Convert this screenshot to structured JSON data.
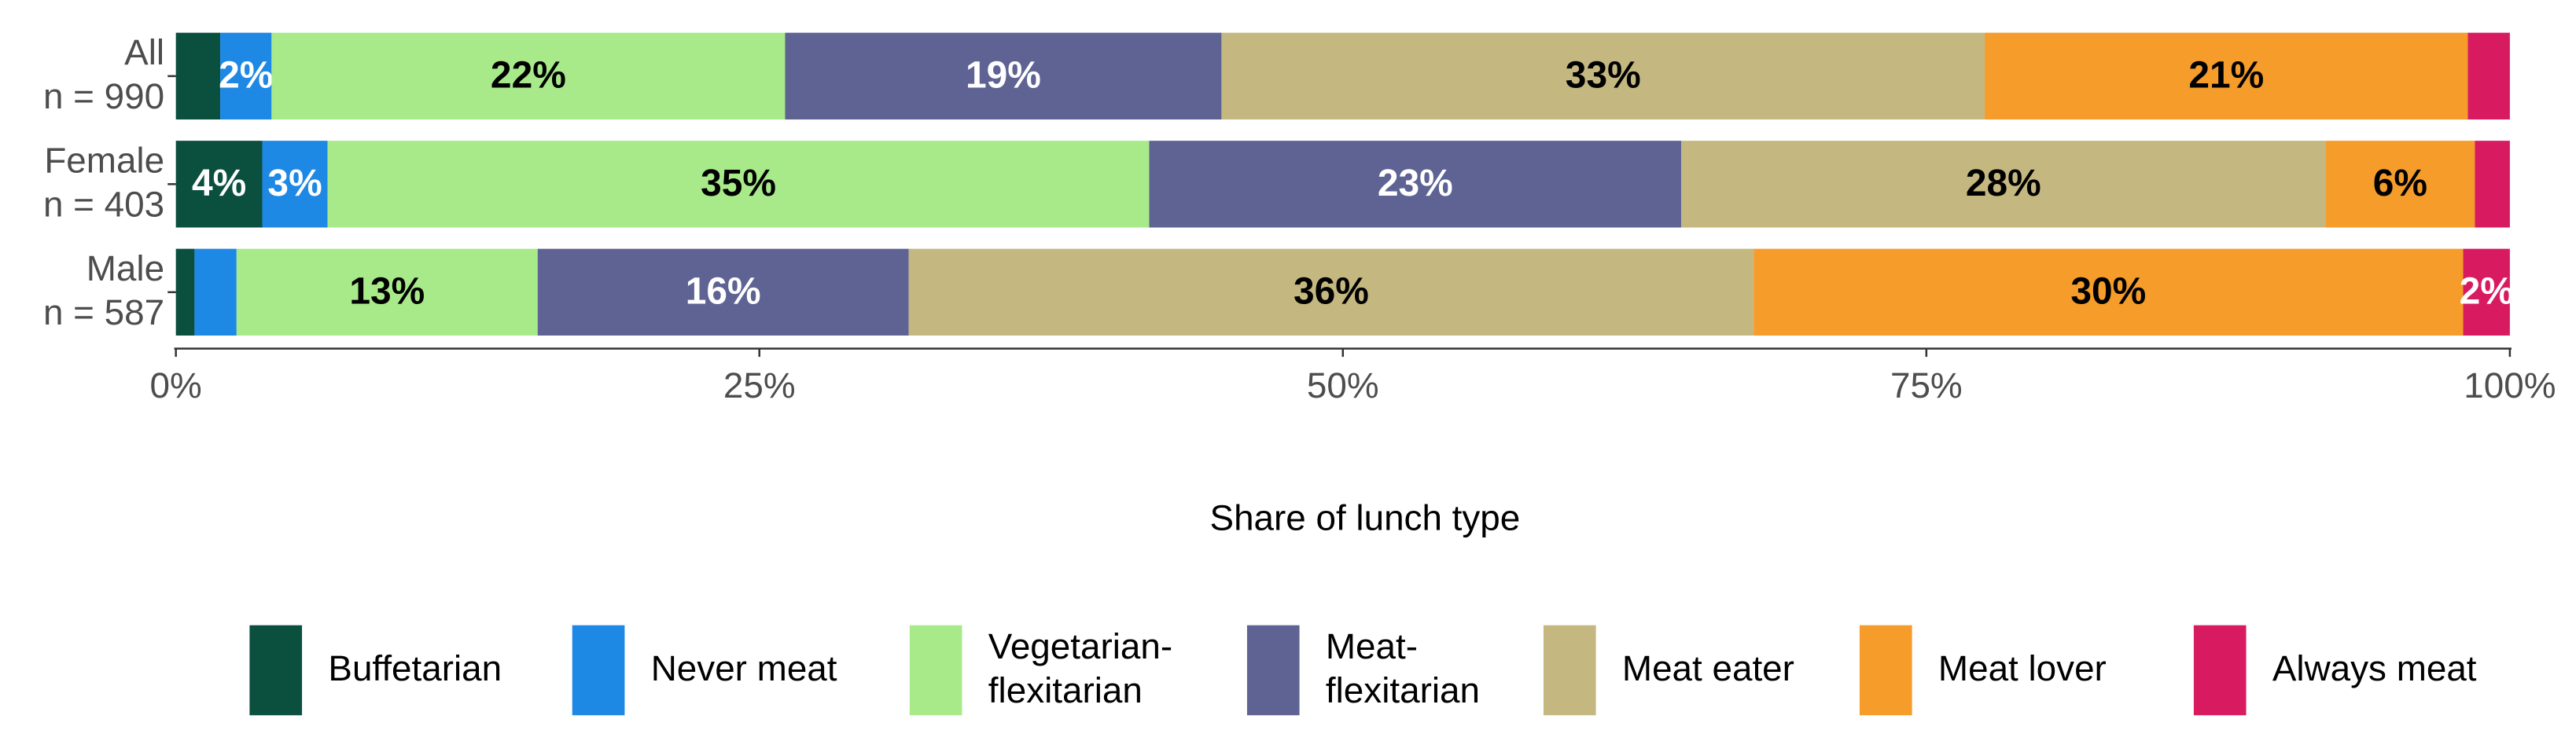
{
  "chart_data": {
    "type": "stacked-barh",
    "x_label": "Share of lunch type",
    "categories": [
      [
        "All",
        "n = 990"
      ],
      [
        "Female",
        "n = 403"
      ],
      [
        "Male",
        "n = 587"
      ]
    ],
    "xlim": [
      0,
      100
    ],
    "xticks": [
      {
        "value": 0,
        "label": "0%"
      },
      {
        "value": 25,
        "label": "25%"
      },
      {
        "value": 50,
        "label": "50%"
      },
      {
        "value": 75,
        "label": "75%"
      },
      {
        "value": 100,
        "label": "100%"
      }
    ],
    "legend": "bottom",
    "series": [
      {
        "name": "Buffetarian",
        "color": "#0b4f3f",
        "label_color": "#ffffff",
        "values": [
          1.9,
          3.7,
          0.8
        ],
        "value_labels": [
          null,
          "4%",
          null
        ]
      },
      {
        "name": "Never meat",
        "color": "#1e88e5",
        "label_color": "#ffffff",
        "values": [
          2.2,
          2.8,
          1.8
        ],
        "value_labels": [
          "2%",
          "3%",
          null
        ]
      },
      {
        "name": "Vegetarian-\nflexitarian",
        "color": "#a8ea8a",
        "label_color": "#000000",
        "values": [
          22.0,
          35.2,
          12.9
        ],
        "value_labels": [
          "22%",
          "35%",
          "13%"
        ]
      },
      {
        "name": "Meat-\nflexitarian",
        "color": "#5e6394",
        "label_color": "#ffffff",
        "values": [
          18.7,
          22.8,
          15.9
        ],
        "value_labels": [
          "19%",
          "23%",
          "16%"
        ]
      },
      {
        "name": "Meat eater",
        "color": "#c4b880",
        "label_color": "#000000",
        "values": [
          32.7,
          27.6,
          36.2
        ],
        "value_labels": [
          "33%",
          "28%",
          "36%"
        ]
      },
      {
        "name": "Meat lover",
        "color": "#f59c2a",
        "label_color": "#000000",
        "values": [
          20.7,
          6.4,
          30.4
        ],
        "value_labels": [
          "21%",
          "6%",
          "30%"
        ]
      },
      {
        "name": "Always meat",
        "color": "#d81b60",
        "label_color": "#ffffff",
        "values": [
          1.8,
          1.5,
          2.0
        ],
        "value_labels": [
          null,
          null,
          "2%"
        ]
      }
    ]
  }
}
